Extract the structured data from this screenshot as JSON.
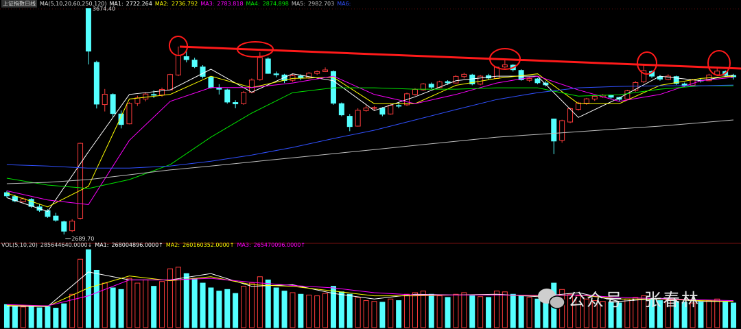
{
  "chart_data": {
    "type": "candlestick",
    "title": "上证指数日线",
    "indicator": "MA(5,10,20,60,250,120)",
    "ylim": [
      2660,
      3700
    ],
    "volume_ylim": [
      0,
      1000000000
    ],
    "up_color": "#ff3c3c",
    "down_color": "#54ffff",
    "high_label": "3674.40",
    "low_label": "2689.70",
    "open": [
      2872,
      2855,
      2832,
      2843,
      2810,
      2793,
      2770,
      2745,
      2706,
      2760,
      3674.4,
      3440,
      3256,
      3300,
      3215,
      3172,
      3262,
      3280,
      3300,
      3298,
      3320,
      3385,
      3465,
      3450,
      3420,
      3375,
      3328,
      3320,
      3265,
      3260,
      3310,
      3365,
      3455,
      3390,
      3385,
      3362,
      3380,
      3372,
      3392,
      3400,
      3400,
      3260,
      3205,
      3162,
      3230,
      3242,
      3240,
      3215,
      3252,
      3255,
      3300,
      3320,
      3345,
      3330,
      3356,
      3350,
      3378,
      3385,
      3345,
      3382,
      3370,
      3420,
      3428,
      3405,
      3362,
      3368,
      3350,
      3193,
      3100,
      3180,
      3235,
      3262,
      3280,
      3290,
      3298,
      3287,
      3280,
      3318,
      3355,
      3400,
      3378,
      3365,
      3378,
      3346,
      3340,
      3362,
      3360,
      3386,
      3400,
      3383
    ],
    "high": [
      2880,
      2862,
      2851,
      2848,
      2822,
      2800,
      2784,
      2750,
      2756,
      3090,
      3674.4,
      3447,
      3324,
      3305,
      3230,
      3266,
      3295,
      3310,
      3318,
      3330,
      3390,
      3509,
      3490,
      3460,
      3428,
      3380,
      3345,
      3325,
      3275,
      3315,
      3370,
      3484,
      3462,
      3400,
      3390,
      3390,
      3388,
      3398,
      3405,
      3418,
      3405,
      3265,
      3215,
      3240,
      3252,
      3250,
      3245,
      3260,
      3265,
      3308,
      3328,
      3350,
      3352,
      3360,
      3362,
      3385,
      3395,
      3390,
      3385,
      3390,
      3422,
      3453,
      3432,
      3410,
      3376,
      3372,
      3358,
      3194,
      3190,
      3242,
      3268,
      3285,
      3296,
      3302,
      3300,
      3290,
      3320,
      3358,
      3430,
      3405,
      3385,
      3388,
      3382,
      3352,
      3368,
      3370,
      3390,
      3417,
      3405,
      3390
    ],
    "low": [
      2850,
      2830,
      2828,
      2806,
      2788,
      2762,
      2745,
      2689.7,
      2700,
      2755,
      3431,
      3239,
      3226,
      3203,
      3152,
      3170,
      3250,
      3270,
      3285,
      3290,
      3318,
      3380,
      3440,
      3415,
      3370,
      3325,
      3300,
      3260,
      3240,
      3255,
      3305,
      3360,
      3390,
      3375,
      3350,
      3355,
      3362,
      3368,
      3385,
      3398,
      3255,
      3205,
      3140,
      3160,
      3225,
      3232,
      3205,
      3212,
      3240,
      3250,
      3295,
      3316,
      3325,
      3328,
      3342,
      3348,
      3370,
      3340,
      3340,
      3365,
      3368,
      3415,
      3400,
      3360,
      3355,
      3345,
      3335,
      3040,
      3090,
      3175,
      3230,
      3255,
      3272,
      3285,
      3280,
      3270,
      3278,
      3312,
      3350,
      3372,
      3360,
      3362,
      3342,
      3332,
      3338,
      3352,
      3358,
      3380,
      3378,
      3365
    ],
    "close": [
      2858,
      2836,
      2845,
      2812,
      2795,
      2768,
      2752,
      2704,
      2748,
      3087,
      3489,
      3258,
      3301,
      3217,
      3169,
      3261,
      3285,
      3302,
      3299,
      3322,
      3387,
      3470,
      3452,
      3421,
      3379,
      3330,
      3323,
      3267,
      3259,
      3309,
      3363,
      3461,
      3392,
      3386,
      3361,
      3382,
      3371,
      3393,
      3400,
      3407,
      3262,
      3211,
      3160,
      3231,
      3241,
      3243,
      3214,
      3253,
      3250,
      3303,
      3322,
      3346,
      3332,
      3355,
      3351,
      3379,
      3388,
      3346,
      3380,
      3372,
      3419,
      3429,
      3408,
      3364,
      3370,
      3351,
      3342,
      3097,
      3186,
      3238,
      3263,
      3281,
      3292,
      3297,
      3288,
      3279,
      3316,
      3352,
      3404,
      3380,
      3367,
      3380,
      3348,
      3340,
      3363,
      3361,
      3385,
      3402,
      3384,
      3377
    ],
    "volume": [
      290000000,
      270000000,
      260000000,
      280000000,
      250000000,
      265000000,
      245000000,
      300000000,
      420000000,
      860000000,
      980000000,
      720000000,
      560000000,
      500000000,
      480000000,
      620000000,
      560000000,
      600000000,
      520000000,
      580000000,
      740000000,
      760000000,
      680000000,
      620000000,
      560000000,
      500000000,
      460000000,
      480000000,
      430000000,
      520000000,
      560000000,
      640000000,
      600000000,
      500000000,
      460000000,
      440000000,
      420000000,
      410000000,
      400000000,
      430000000,
      520000000,
      450000000,
      420000000,
      380000000,
      340000000,
      330000000,
      320000000,
      360000000,
      340000000,
      420000000,
      440000000,
      460000000,
      420000000,
      400000000,
      380000000,
      420000000,
      440000000,
      400000000,
      390000000,
      380000000,
      460000000,
      450000000,
      420000000,
      400000000,
      380000000,
      360000000,
      350000000,
      560000000,
      480000000,
      420000000,
      400000000,
      360000000,
      340000000,
      330000000,
      320000000,
      310000000,
      360000000,
      380000000,
      400000000,
      360000000,
      340000000,
      350000000,
      330000000,
      320000000,
      310000000,
      320000000,
      340000000,
      360000000,
      320000000,
      310000000
    ],
    "ma_x": [
      0,
      5,
      10,
      15,
      20,
      25,
      30,
      35,
      40,
      45,
      50,
      55,
      60,
      65,
      70,
      75,
      80,
      85,
      89
    ],
    "ma": [
      {
        "name": "MA1:",
        "readout": 2722.264,
        "color": "#ffffff",
        "values": [
          2850,
          2790,
          3050,
          3300,
          3320,
          3410,
          3310,
          3390,
          3360,
          3230,
          3290,
          3360,
          3380,
          3380,
          3200,
          3285,
          3380,
          3360,
          3385
        ]
      },
      {
        "name": "MA2:",
        "readout": 2736.792,
        "color": "#ffff00",
        "values": [
          2870,
          2810,
          2900,
          3280,
          3300,
          3380,
          3330,
          3370,
          3375,
          3260,
          3260,
          3340,
          3370,
          3390,
          3260,
          3260,
          3340,
          3370,
          3380
        ]
      },
      {
        "name": "MA3:",
        "readout": 2783.818,
        "color": "#ff00ff",
        "values": [
          2880,
          2840,
          2820,
          3100,
          3270,
          3330,
          3330,
          3350,
          3380,
          3300,
          3260,
          3300,
          3350,
          3380,
          3320,
          3270,
          3300,
          3360,
          3375
        ]
      },
      {
        "name": "MA4:",
        "readout": 2874.898,
        "color": "#00e600",
        "values": [
          2935,
          2905,
          2890,
          2929,
          2994,
          3114,
          3219,
          3308,
          3329,
          3329,
          3323,
          3323,
          3329,
          3329,
          3293,
          3299,
          3323,
          3338,
          3338
        ]
      },
      {
        "name": "MA5:",
        "readout": 2982.703,
        "color": "#bfbfbf",
        "values": [
          2911,
          2917,
          2929,
          2950,
          2971,
          2988,
          3006,
          3024,
          3042,
          3060,
          3078,
          3096,
          3114,
          3126,
          3138,
          3150,
          3162,
          3177,
          3189
        ]
      },
      {
        "name": "MA6:",
        "color": "#3050ff",
        "values": [
          2994,
          2988,
          2979,
          2979,
          2988,
          3009,
          3036,
          3069,
          3108,
          3144,
          3189,
          3234,
          3278,
          3308,
          3329,
          3335,
          3338,
          3338,
          3341
        ]
      }
    ],
    "volume_indicator": "VOL(5,10,20)",
    "volume_readout": {
      "value": 285644640,
      "label": "285644640.0000↓"
    },
    "volume_ma": [
      {
        "name": "MA1:",
        "readout": {
          "value": 268004896,
          "label": "268004896.0000↑"
        },
        "color": "#ffffff",
        "values": [
          270000000,
          265000000,
          700000000,
          600000000,
          600000000,
          680000000,
          520000000,
          540000000,
          430000000,
          360000000,
          420000000,
          410000000,
          420000000,
          390000000,
          440000000,
          330000000,
          370000000,
          330000000,
          330000000
        ]
      },
      {
        "name": "MA2:",
        "readout": {
          "value": 260160352,
          "label": "260160352.0000↑"
        },
        "color": "#ffff00",
        "values": [
          280000000,
          270000000,
          500000000,
          650000000,
          590000000,
          640000000,
          540000000,
          520000000,
          460000000,
          400000000,
          400000000,
          410000000,
          410000000,
          400000000,
          410000000,
          360000000,
          360000000,
          340000000,
          330000000
        ]
      },
      {
        "name": "MA3:",
        "readout": {
          "value": 265470096,
          "label": "265470096.0000↑"
        },
        "color": "#ff00ff",
        "values": [
          290000000,
          275000000,
          400000000,
          600000000,
          600000000,
          620000000,
          570000000,
          530000000,
          500000000,
          440000000,
          410000000,
          410000000,
          410000000,
          405000000,
          410000000,
          380000000,
          365000000,
          350000000,
          340000000
        ]
      }
    ],
    "watermark": "公众号 · 张春林"
  }
}
